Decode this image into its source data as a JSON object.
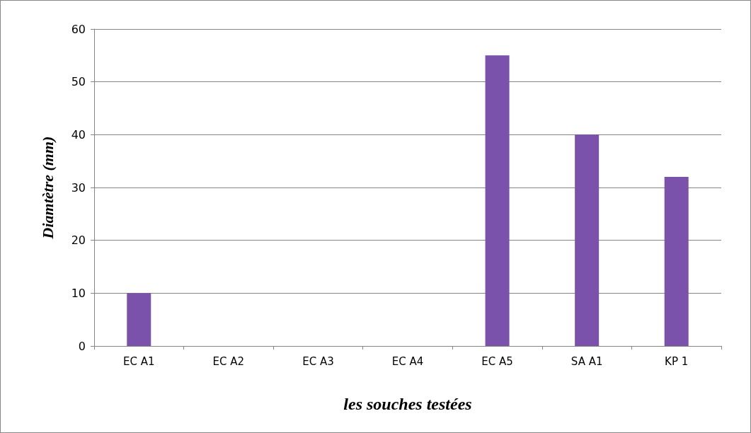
{
  "chart_data": {
    "type": "bar",
    "xlabel": "les souches testées",
    "ylabel": "Diamtètre (mm)",
    "categories": [
      "EC A1",
      "EC A2",
      "EC A3",
      "EC A4",
      "EC A5",
      "SA A1",
      "KP 1"
    ],
    "values": [
      10,
      0,
      0,
      0,
      55,
      40,
      32
    ],
    "color": "#7b52ab",
    "ylim": [
      0,
      60
    ],
    "yticks": [
      0,
      10,
      20,
      30,
      40,
      50,
      60
    ],
    "grid": "y"
  }
}
